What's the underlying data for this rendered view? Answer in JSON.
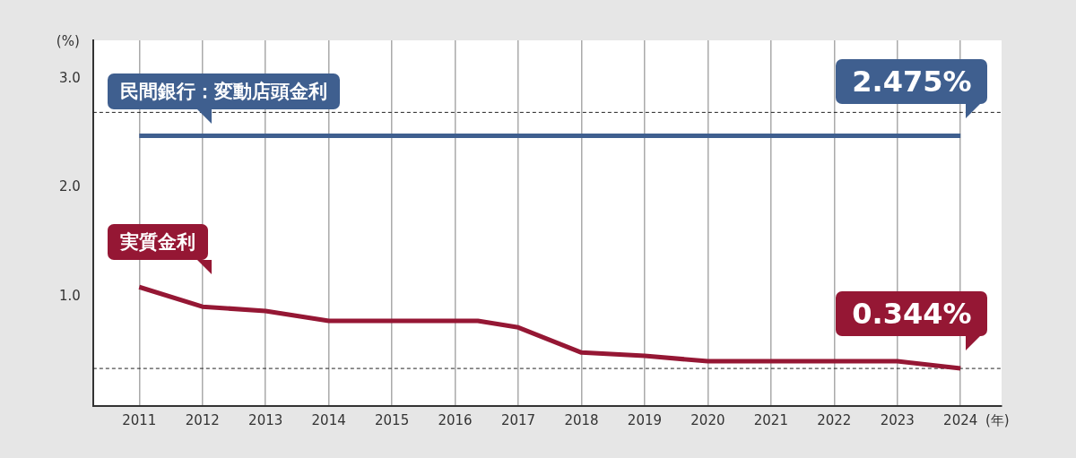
{
  "chart_data": {
    "type": "line",
    "ylabel": "(%)",
    "xlabel": "(年)",
    "xlim": [
      2010.27,
      2024.65
    ],
    "xticks": [
      2011,
      2012,
      2013,
      2014,
      2015,
      2016,
      2017,
      2018,
      2019,
      2020,
      2021,
      2022,
      2023,
      2024
    ],
    "ylim": [
      0,
      3.35
    ],
    "yticks": [
      {
        "value": 1,
        "label": "1.0"
      },
      {
        "value": 2,
        "label": "2.0"
      },
      {
        "value": 3,
        "label": "3.0"
      }
    ],
    "grid": "x",
    "legend": false,
    "marker": "none",
    "line_style": "solid",
    "series": [
      {
        "name": "民間銀行：変動店頭金利",
        "color": "#3f5f8f",
        "x": [
          2011,
          2024
        ],
        "values": [
          2.475,
          2.475
        ],
        "value_labels": [
          null,
          "2.475%"
        ]
      },
      {
        "name": "実質金利",
        "color": "#951734",
        "x": [
          2011,
          2012,
          2013,
          2014,
          2016.36,
          2017,
          2018,
          2019,
          2020,
          2021,
          2022,
          2023,
          2024
        ],
        "values": [
          1.09,
          0.91,
          0.87,
          0.78,
          0.78,
          0.72,
          0.49,
          0.46,
          0.41,
          0.41,
          0.41,
          0.41,
          0.344
        ],
        "value_labels": [
          null,
          null,
          null,
          null,
          null,
          null,
          null,
          null,
          null,
          null,
          null,
          null,
          "0.344%"
        ]
      }
    ],
    "ref_lines": [
      {
        "axis": "y",
        "value": 2.69,
        "line_style": "dashed",
        "color": "#222222"
      },
      {
        "axis": "y",
        "value": 0.344,
        "line_style": "dashed",
        "color": "#222222"
      }
    ]
  }
}
